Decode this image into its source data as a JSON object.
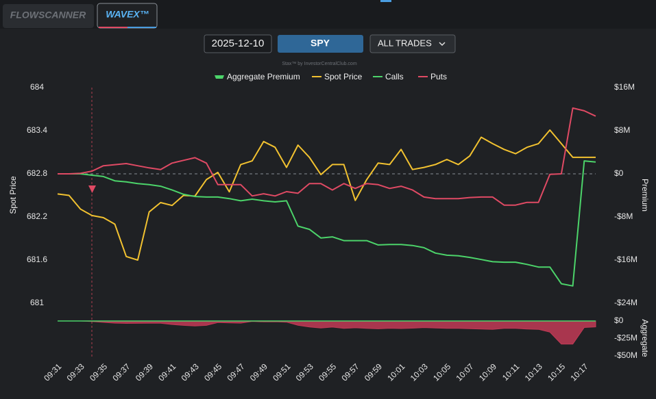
{
  "tabs": [
    "FLOWSCANNER",
    "WAVEX™"
  ],
  "toolbar": {
    "date": "2025-12-10",
    "symbol": "SPY",
    "filter": "ALL TRADES"
  },
  "watermark": "Stax™ by InvestorCentralClub.com",
  "chart_data": [
    {
      "type": "line",
      "categories": [
        "09:31",
        null,
        "09:33",
        null,
        "09:35",
        null,
        "09:37",
        null,
        "09:39",
        null,
        "09:41",
        null,
        "09:43",
        null,
        "09:45",
        null,
        "09:47",
        null,
        "09:49",
        null,
        "09:51",
        null,
        "09:53",
        null,
        "09:55",
        null,
        "09:57",
        null,
        "09:59",
        null,
        "10:01",
        null,
        "10:03",
        null,
        "10:05",
        null,
        "10:07",
        null,
        "10:09",
        null,
        "10:11",
        null,
        "10:13",
        null,
        "10:15",
        null,
        "10:17",
        null
      ],
      "ylabel": "Spot Price",
      "y2label": "Premium",
      "ylim": [
        681,
        684
      ],
      "yticks": [
        681,
        681.6,
        682.2,
        682.8,
        683.4,
        684
      ],
      "y2lim": [
        -24000000,
        16000000
      ],
      "y2ticks": [
        {
          "value": -24000000,
          "label": "-$24M"
        },
        {
          "value": -16000000,
          "label": "-$16M"
        },
        {
          "value": -8000000,
          "label": "-$8M"
        },
        {
          "value": 0,
          "label": "$0"
        },
        {
          "value": 8000000,
          "label": "$8M"
        },
        {
          "value": 16000000,
          "label": "$16M"
        }
      ],
      "series": [
        {
          "name": "Spot Price",
          "color": "#f2c230",
          "axis": "y",
          "values": [
            682.52,
            682.5,
            682.31,
            682.22,
            682.19,
            682.1,
            681.65,
            681.6,
            682.27,
            682.4,
            682.36,
            682.5,
            682.49,
            682.72,
            682.82,
            682.55,
            682.93,
            682.98,
            683.25,
            683.17,
            682.89,
            683.2,
            683.03,
            682.79,
            682.93,
            682.93,
            682.43,
            682.72,
            682.95,
            682.93,
            683.14,
            682.86,
            682.89,
            682.93,
            683.0,
            682.93,
            683.05,
            683.31,
            683.22,
            683.14,
            683.08,
            683.17,
            683.22,
            683.41,
            683.22,
            683.03,
            683.03,
            683.03
          ]
        },
        {
          "name": "Calls",
          "color": "#4cd46a",
          "axis": "y2",
          "values": [
            0,
            0,
            0,
            -250000,
            -500000,
            -1300000,
            -1500000,
            -1800000,
            -2000000,
            -2300000,
            -3000000,
            -3800000,
            -4200000,
            -4300000,
            -4300000,
            -4600000,
            -5000000,
            -4700000,
            -5000000,
            -5200000,
            -5000000,
            -9700000,
            -10300000,
            -11900000,
            -11700000,
            -12400000,
            -12400000,
            -12400000,
            -13200000,
            -13100000,
            -13100000,
            -13300000,
            -13700000,
            -14700000,
            -15100000,
            -15200000,
            -15500000,
            -15900000,
            -16300000,
            -16400000,
            -16400000,
            -16800000,
            -17300000,
            -17300000,
            -20400000,
            -20800000,
            2400000,
            2200000
          ]
        },
        {
          "name": "Puts",
          "color": "#e04a64",
          "axis": "y2",
          "values": [
            0,
            0,
            100000,
            500000,
            1500000,
            1700000,
            1900000,
            1500000,
            1100000,
            800000,
            2000000,
            2500000,
            3000000,
            2000000,
            -2000000,
            -2000000,
            -2000000,
            -4100000,
            -3700000,
            -4100000,
            -3300000,
            -3600000,
            -1800000,
            -1800000,
            -3000000,
            -1800000,
            -2700000,
            -1800000,
            -2000000,
            -2700000,
            -2300000,
            -3000000,
            -4300000,
            -4600000,
            -4600000,
            -4600000,
            -4400000,
            -4300000,
            -4300000,
            -5800000,
            -5800000,
            -5300000,
            -5300000,
            -100000,
            0,
            12200000,
            11700000,
            10700000
          ]
        }
      ]
    },
    {
      "type": "area",
      "y2label": "Aggregate",
      "ylim": [
        -50000000,
        0
      ],
      "yticks": [
        {
          "value": -50000000,
          "label": "-$50M"
        },
        {
          "value": -25000000,
          "label": "-$25M"
        },
        {
          "value": 0,
          "label": "$0"
        }
      ],
      "series": [
        {
          "name": "Aggregate Premium",
          "color": "#4cd46a",
          "negative_color": "#c23a56",
          "values": [
            0,
            0,
            0,
            -800000,
            -2000000,
            -3000000,
            -3400000,
            -3300000,
            -3100000,
            -3100000,
            -5000000,
            -6300000,
            -7200000,
            -6300000,
            -2300000,
            -2600000,
            -3000000,
            -600000,
            -1300000,
            -1100000,
            -1700000,
            -6100000,
            -8500000,
            -10100000,
            -8700000,
            -10600000,
            -9700000,
            -10600000,
            -11200000,
            -10400000,
            -10800000,
            -10300000,
            -9400000,
            -10100000,
            -10500000,
            -10600000,
            -11100000,
            -11600000,
            -12000000,
            -10600000,
            -10600000,
            -11500000,
            -12000000,
            -16000000,
            -33000000,
            -33000000,
            -9300000,
            -8500000
          ]
        }
      ]
    }
  ]
}
